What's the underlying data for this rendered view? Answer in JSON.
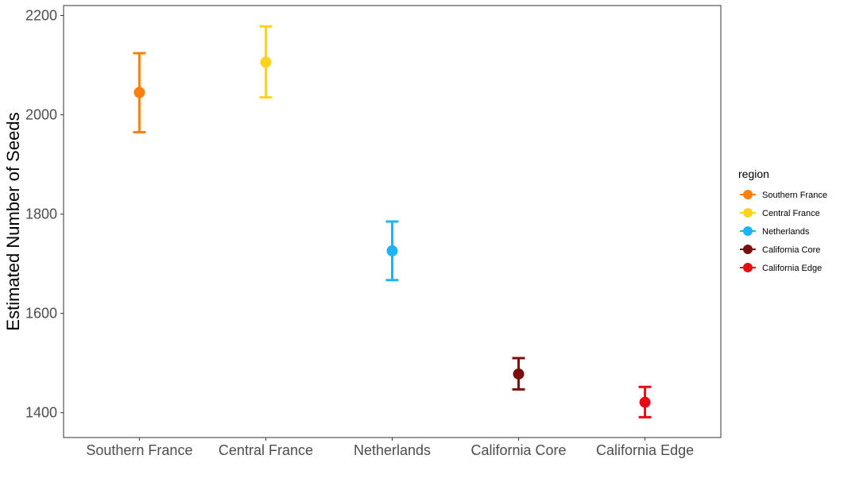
{
  "chart_data": {
    "type": "scatter",
    "title": "",
    "xlabel": "",
    "ylabel": "Estimated Number of Seeds",
    "ylim": [
      1350,
      2220
    ],
    "yticks": [
      1400,
      1600,
      1800,
      2000,
      2200
    ],
    "ytick_labels": [
      "1400",
      "1600",
      "1800",
      "2000",
      "2200"
    ],
    "categories": [
      "Southern France",
      "Central France",
      "Netherlands",
      "California Core",
      "California Edge"
    ],
    "grid": false,
    "legend": {
      "title": "region",
      "placement": "right"
    },
    "series": [
      {
        "name": "Southern France",
        "color": "#FF7F0E",
        "x": "Southern France",
        "y": 2045,
        "ymin": 1965,
        "ymax": 2124
      },
      {
        "name": "Central France",
        "color": "#FFD21F",
        "x": "Central France",
        "y": 2106,
        "ymin": 2035,
        "ymax": 2178
      },
      {
        "name": "Netherlands",
        "color": "#1EB3F5",
        "x": "Netherlands",
        "y": 1726,
        "ymin": 1667,
        "ymax": 1785
      },
      {
        "name": "California Core",
        "color": "#7B0F0F",
        "x": "California Core",
        "y": 1478,
        "ymin": 1447,
        "ymax": 1510
      },
      {
        "name": "California Edge",
        "color": "#E60C14",
        "x": "California Edge",
        "y": 1421,
        "ymin": 1391,
        "ymax": 1452
      }
    ]
  }
}
